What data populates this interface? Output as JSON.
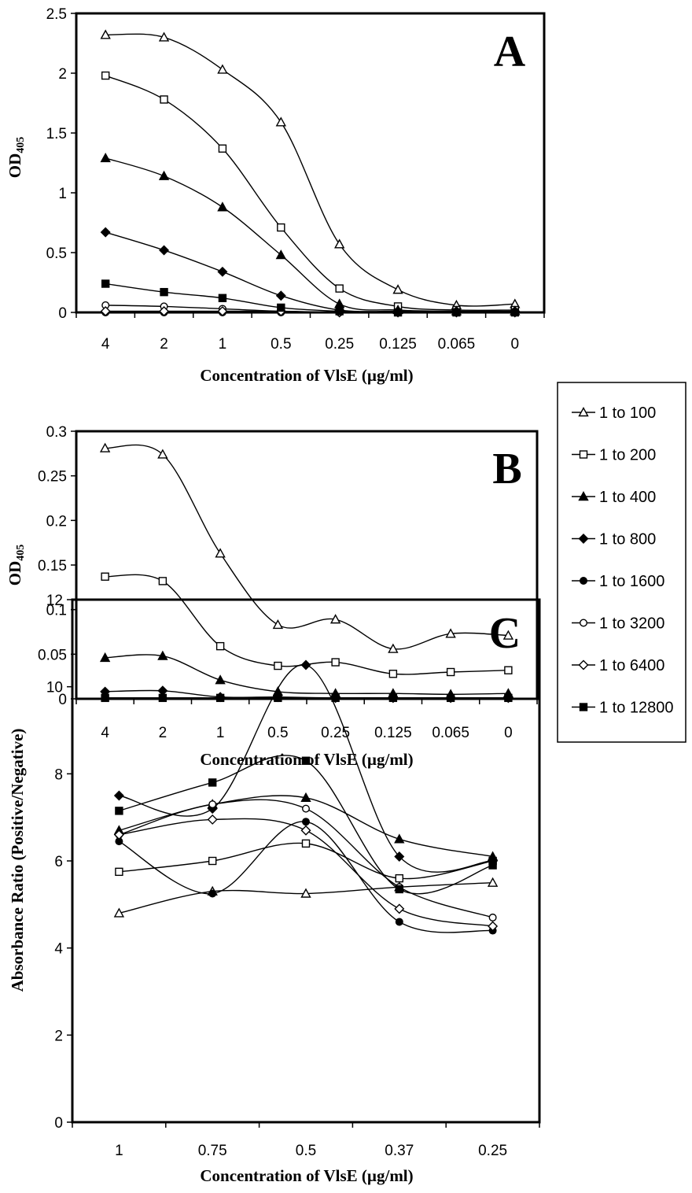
{
  "legend": [
    {
      "label": "1 to 100",
      "marker": "triangle-open"
    },
    {
      "label": "1 to 200",
      "marker": "square-open"
    },
    {
      "label": "1 to 400",
      "marker": "triangle-filled"
    },
    {
      "label": "1 to 800",
      "marker": "diamond-filled"
    },
    {
      "label": "1 to 1600",
      "marker": "circle-filled"
    },
    {
      "label": "1 to 3200",
      "marker": "circle-open"
    },
    {
      "label": "1 to 6400",
      "marker": "diamond-open"
    },
    {
      "label": "1 to 12800",
      "marker": "square-filled"
    }
  ],
  "chart_data": [
    {
      "type": "line",
      "panel": "A",
      "xlabel": "Concentration of VlsE (µg/ml)",
      "ylabel_main": "OD",
      "ylabel_sub": "405",
      "categories": [
        "4",
        "2",
        "1",
        "0.5",
        "0.25",
        "0.125",
        "0.065",
        "0"
      ],
      "ylim": [
        0,
        2.5
      ],
      "yticks": [
        "0",
        "0.5",
        "1",
        "1.5",
        "2",
        "2.5"
      ],
      "series": [
        {
          "name": "1 to 100",
          "values": [
            2.32,
            2.3,
            2.03,
            1.59,
            0.57,
            0.19,
            0.06,
            0.07
          ]
        },
        {
          "name": "1 to 200",
          "values": [
            1.98,
            1.78,
            1.37,
            0.71,
            0.2,
            0.05,
            0.02,
            0.02
          ]
        },
        {
          "name": "1 to 400",
          "values": [
            1.29,
            1.14,
            0.88,
            0.48,
            0.07,
            0.02,
            0.01,
            0.01
          ]
        },
        {
          "name": "1 to 800",
          "values": [
            0.67,
            0.52,
            0.34,
            0.14,
            0.02,
            0.01,
            0.01,
            0.01
          ]
        },
        {
          "name": "1 to 1600",
          "values": [
            0.0,
            0.0,
            0.0,
            0.0,
            0.0,
            0.0,
            0.0,
            0.0
          ]
        },
        {
          "name": "1 to 3200",
          "values": [
            0.06,
            0.05,
            0.03,
            0.01,
            0.0,
            0.0,
            0.0,
            0.0
          ]
        },
        {
          "name": "1 to 6400",
          "values": [
            0.01,
            0.01,
            0.01,
            0.01,
            0.0,
            0.0,
            0.0,
            0.0
          ]
        },
        {
          "name": "1 to 12800",
          "values": [
            0.24,
            0.17,
            0.12,
            0.04,
            0.01,
            0.0,
            0.0,
            0.0
          ]
        }
      ]
    },
    {
      "type": "line",
      "panel": "B",
      "xlabel": "Concentration of VlsE (µg/ml)",
      "ylabel_main": "OD",
      "ylabel_sub": "405",
      "categories": [
        "4",
        "2",
        "1",
        "0.5",
        "0.25",
        "0.125",
        "0.065",
        "0"
      ],
      "ylim": [
        0,
        0.3
      ],
      "yticks": [
        "0",
        "0.05",
        "0.1",
        "0.15",
        "0.2",
        "0.25",
        "0.3"
      ],
      "series": [
        {
          "name": "1 to 100",
          "values": [
            0.281,
            0.274,
            0.163,
            0.083,
            0.089,
            0.056,
            0.073,
            0.071
          ]
        },
        {
          "name": "1 to 200",
          "values": [
            0.137,
            0.132,
            0.059,
            0.037,
            0.041,
            0.028,
            0.03,
            0.032
          ]
        },
        {
          "name": "1 to 400",
          "values": [
            0.046,
            0.048,
            0.021,
            0.008,
            0.006,
            0.006,
            0.005,
            0.006
          ]
        },
        {
          "name": "1 to 800",
          "values": [
            0.008,
            0.009,
            0.002,
            0.002,
            0.001,
            0.001,
            0.001,
            0.001
          ]
        },
        {
          "name": "1 to 1600",
          "values": [
            0.001,
            0.001,
            0.001,
            0.001,
            0.001,
            0.001,
            0.001,
            0.001
          ]
        },
        {
          "name": "1 to 12800",
          "values": [
            0.001,
            0.001,
            0.001,
            0.001,
            0.001,
            0.001,
            0.001,
            0.001
          ]
        }
      ]
    },
    {
      "type": "line",
      "panel": "C",
      "xlabel": "Concentration of VlsE (µg/ml)",
      "ylabel": "Absorbance Ratio (Positive/Negative)",
      "categories": [
        "1",
        "0.75",
        "0.5",
        "0.37",
        "0.25"
      ],
      "ylim": [
        0,
        12
      ],
      "yticks": [
        "0",
        "2",
        "4",
        "6",
        "8",
        "10",
        "12"
      ],
      "series": [
        {
          "name": "1 to 100",
          "values": [
            4.8,
            5.3,
            5.25,
            5.4,
            5.5
          ]
        },
        {
          "name": "1 to 200",
          "values": [
            5.75,
            6.0,
            6.4,
            5.6,
            6.0
          ]
        },
        {
          "name": "1 to 400",
          "values": [
            6.7,
            7.3,
            7.45,
            6.5,
            6.1
          ]
        },
        {
          "name": "1 to 800",
          "values": [
            7.5,
            7.2,
            10.5,
            6.1,
            6.0
          ]
        },
        {
          "name": "1 to 1600",
          "values": [
            6.45,
            5.25,
            6.9,
            4.6,
            4.4
          ]
        },
        {
          "name": "1 to 3200",
          "values": [
            6.6,
            7.3,
            7.2,
            5.4,
            4.7
          ]
        },
        {
          "name": "1 to 6400",
          "values": [
            6.6,
            6.95,
            6.7,
            4.9,
            4.5
          ]
        },
        {
          "name": "1 to 12800",
          "values": [
            7.15,
            7.8,
            8.3,
            5.35,
            5.9
          ]
        }
      ]
    }
  ]
}
